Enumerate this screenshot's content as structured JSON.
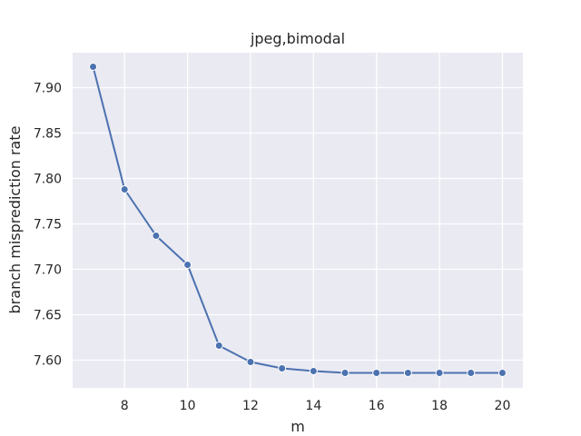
{
  "chart_data": {
    "type": "line",
    "title": "jpeg,bimodal",
    "xlabel": "m",
    "ylabel": "branch misprediction rate",
    "xlim": [
      6.35,
      20.65
    ],
    "ylim": [
      7.5695,
      7.9385
    ],
    "xticks": [
      8,
      10,
      12,
      14,
      16,
      18,
      20
    ],
    "yticks": [
      7.6,
      7.65,
      7.7,
      7.75,
      7.8,
      7.85,
      7.9
    ],
    "ytick_labels": [
      "7.60",
      "7.65",
      "7.70",
      "7.75",
      "7.80",
      "7.85",
      "7.90"
    ],
    "grid": true,
    "legend": "none",
    "series": [
      {
        "color": "#4c72b0",
        "marker": "circle",
        "x": [
          7,
          8,
          9,
          10,
          11,
          12,
          13,
          14,
          15,
          16,
          17,
          18,
          19,
          20
        ],
        "values": [
          7.923,
          7.788,
          7.737,
          7.705,
          7.616,
          7.598,
          7.591,
          7.588,
          7.586,
          7.586,
          7.586,
          7.586,
          7.586,
          7.586
        ]
      }
    ],
    "colors": {
      "plot_background": "#eaeaf2",
      "grid": "#ffffff",
      "text": "#262626"
    }
  }
}
